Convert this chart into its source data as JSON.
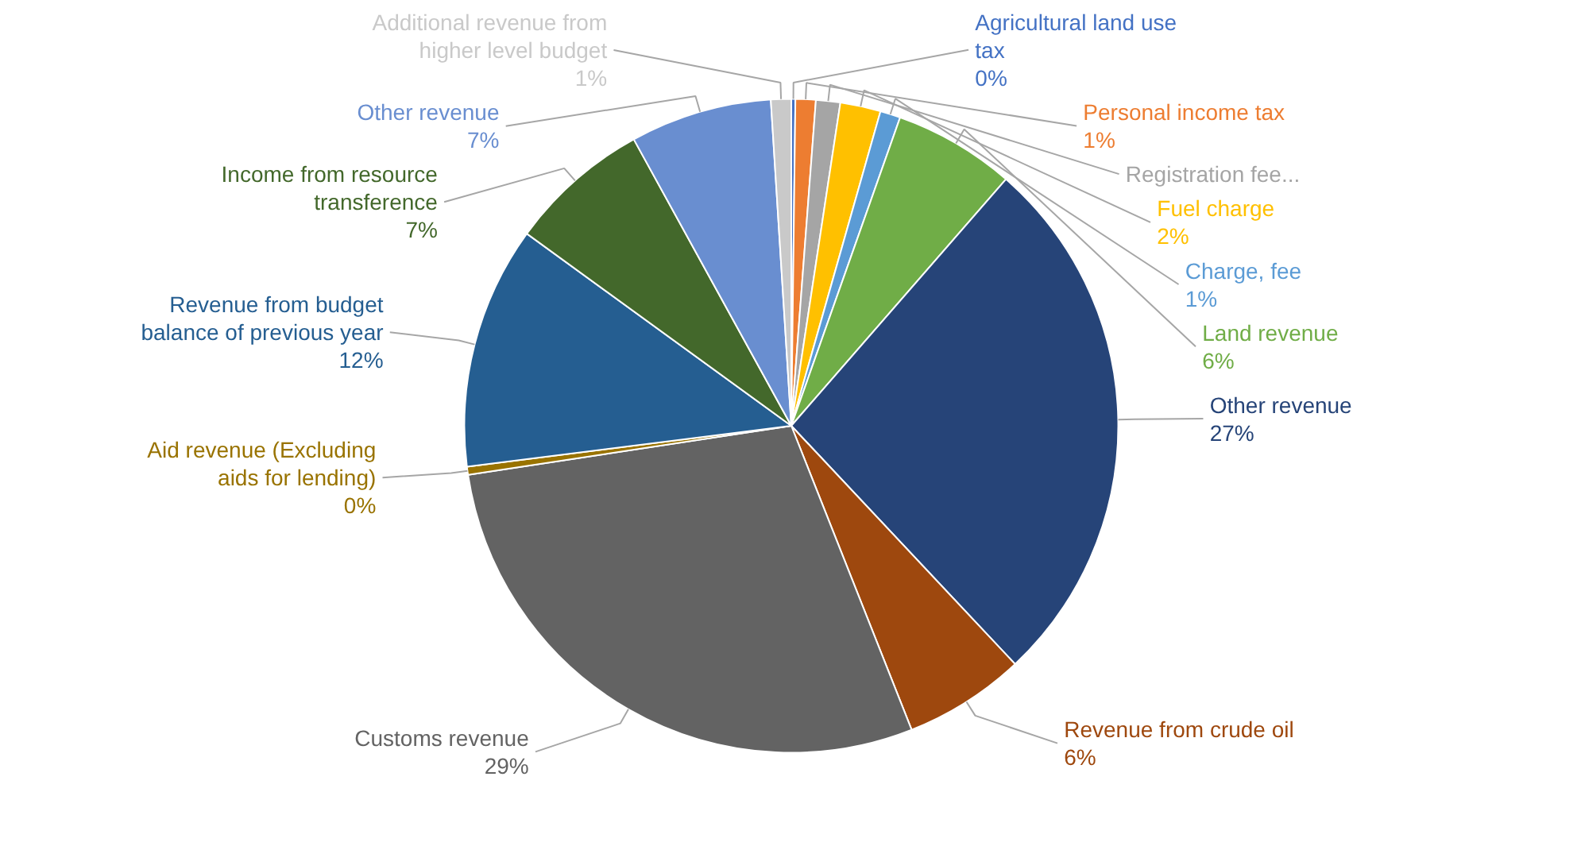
{
  "chart_data": {
    "type": "pie",
    "categories": [
      "Agricultural land use tax",
      "Personal income tax",
      "Registration fee...",
      "Fuel charge",
      "Charge, fee",
      "Land revenue",
      "Other revenue",
      "Revenue from crude oil",
      "Customs revenue",
      "Aid revenue (Excluding aids for lending)",
      "Revenue from budget balance of previous year",
      "Income from resource transference",
      "Other revenue",
      "Additional revenue from higher level budget"
    ],
    "values": [
      0.2,
      1,
      1.2,
      2,
      1,
      6,
      26.6,
      6,
      28.6,
      0.4,
      12,
      7,
      7,
      1
    ],
    "value_labels": [
      "0%",
      "1%",
      null,
      "2%",
      "1%",
      "6%",
      "27%",
      "6%",
      "29%",
      "0%",
      "12%",
      "7%",
      "7%",
      "1%"
    ],
    "colors": [
      "#4472c4",
      "#ed7d31",
      "#a5a5a5",
      "#ffc000",
      "#5b9bd5",
      "#70ad47",
      "#264478",
      "#9e480e",
      "#636363",
      "#997300",
      "#255e91",
      "#43682b",
      "#698ed0",
      "#c9c9c9"
    ]
  }
}
